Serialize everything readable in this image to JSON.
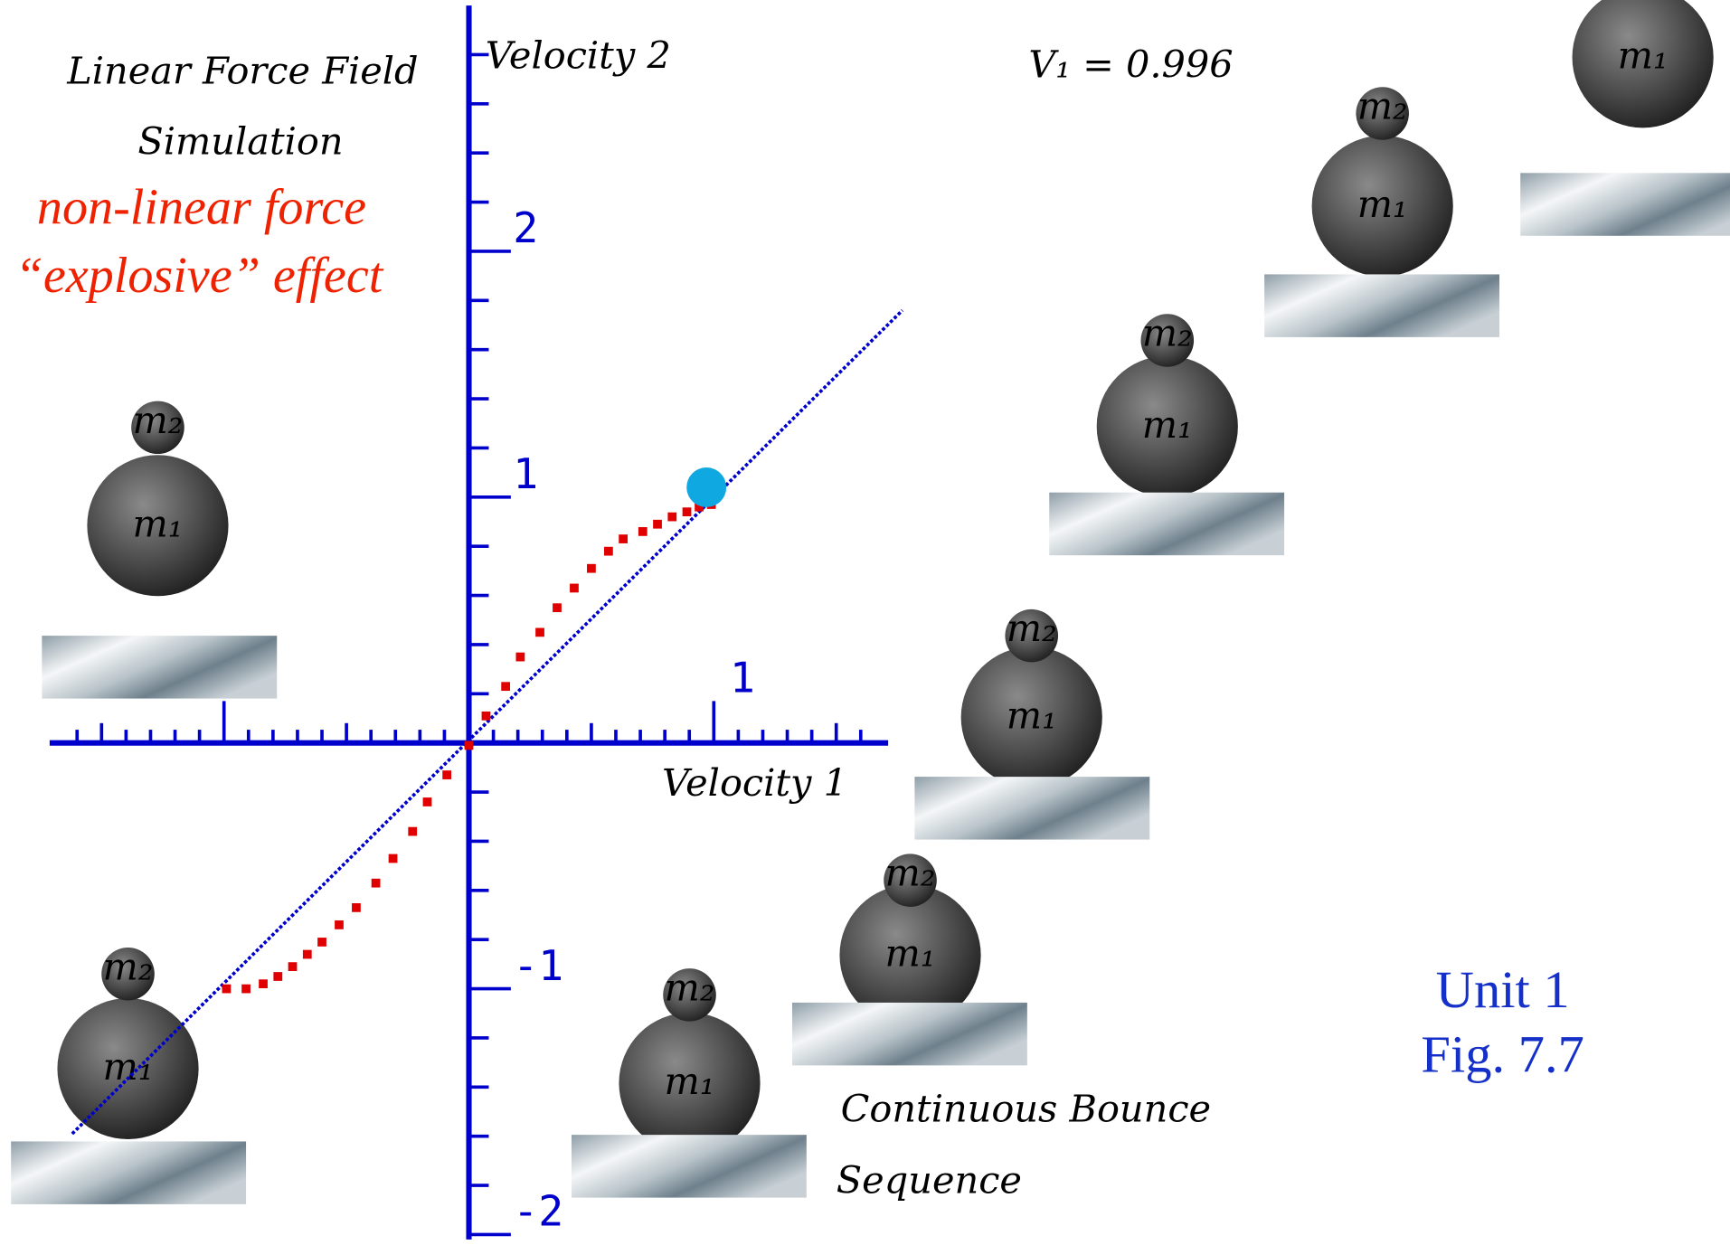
{
  "slide": {
    "title_lines": [
      "Linear Force Field",
      "Simulation"
    ],
    "note_lines": [
      "non-linear force",
      "“explosive” effect"
    ],
    "velocity_label": "V₁ = 0.996",
    "caption_lines": [
      "Continuous Bounce",
      "Sequence"
    ],
    "unit_lines": [
      "Unit 1",
      "Fig. 7.7"
    ],
    "ball_labels": [
      "m₁",
      "m₂"
    ]
  },
  "chart_data": {
    "type": "scatter",
    "x_label": "Velocity 1",
    "y_label": "Velocity 2",
    "xlim": [
      -1.712,
      1.712
    ],
    "ylim": [
      -2.02,
      3.0
    ],
    "xticks": [
      1
    ],
    "xminor_ticks": [
      -1.6,
      -1.5,
      -1.4,
      -1.3,
      -1.2,
      -1.1,
      -1,
      -0.9,
      -0.8,
      -0.7,
      -0.6,
      -0.5,
      -0.4,
      -0.3,
      -0.2,
      -0.1,
      0.1,
      0.2,
      0.3,
      0.4,
      0.5,
      0.6,
      0.7,
      0.8,
      0.9,
      1.1,
      1.2,
      1.3,
      1.4,
      1.5,
      1.6
    ],
    "yticks": [
      -2,
      -1,
      1,
      2
    ],
    "yminor_ticks": [
      -1.8,
      -1.6,
      -1.4,
      -1.2,
      -0.8,
      -0.6,
      -0.4,
      -0.2,
      0.2,
      0.4,
      0.6,
      0.8,
      1.2,
      1.4,
      1.6,
      1.8,
      2.2,
      2.4,
      2.6,
      2.8
    ],
    "axis_color": "#0000cc",
    "series": [
      {
        "style": "line",
        "color": "#0000cc",
        "x": [
          -1.62,
          1.77
        ],
        "values": [
          -1.59,
          1.76
        ]
      },
      {
        "style": "points",
        "color": "#e00000",
        "x": [
          -0.99,
          -0.91,
          -0.84,
          -0.78,
          -0.72,
          -0.66,
          -0.6,
          -0.53,
          -0.46,
          -0.38,
          -0.31,
          -0.23,
          -0.17,
          -0.09,
          0,
          0.07,
          0.15,
          0.21,
          0.29,
          0.36,
          0.43,
          0.5,
          0.57,
          0.63,
          0.71,
          0.77,
          0.83,
          0.89,
          0.94,
          0.99
        ],
        "values": [
          -1.0,
          -1.0,
          -0.98,
          -0.95,
          -0.91,
          -0.86,
          -0.81,
          -0.74,
          -0.67,
          -0.57,
          -0.47,
          -0.36,
          -0.24,
          -0.13,
          -0.01,
          0.11,
          0.23,
          0.35,
          0.45,
          0.55,
          0.63,
          0.71,
          0.78,
          0.83,
          0.86,
          0.89,
          0.92,
          0.94,
          0.96,
          0.97
        ]
      },
      {
        "style": "dot",
        "color": "#10a8e0",
        "x": [
          0.97
        ],
        "values": [
          1.04
        ]
      }
    ]
  }
}
